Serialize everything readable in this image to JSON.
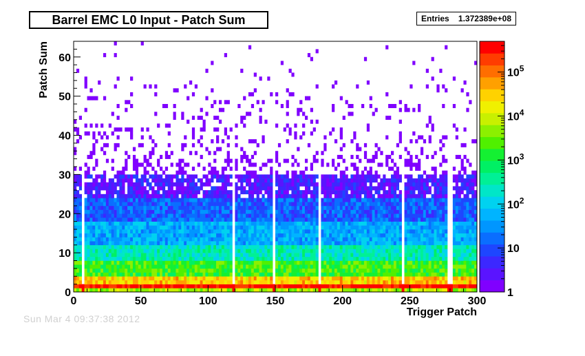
{
  "title": "Barrel EMC L0 Input - Patch Sum",
  "stats": {
    "label": "Entries",
    "value": "1.372389e+08"
  },
  "footer": "Sun Mar 4 09:37:38 2012",
  "chart_data": {
    "type": "heatmap",
    "title": "Barrel EMC L0 Input - Patch Sum",
    "xlabel": "Trigger Patch",
    "ylabel": "Patch Sum",
    "xlim": [
      0,
      300
    ],
    "ylim": [
      0,
      64
    ],
    "x_ticks": [
      0,
      50,
      100,
      150,
      200,
      250,
      300
    ],
    "y_ticks": [
      0,
      10,
      20,
      30,
      40,
      50,
      60
    ],
    "z_scale": "log",
    "z_range": [
      1,
      500000
    ],
    "z_ticks": [
      {
        "value": 1,
        "label": "1"
      },
      {
        "value": 10,
        "label": "10"
      },
      {
        "value": 100,
        "label": "10",
        "exp": "2"
      },
      {
        "value": 1000,
        "label": "10",
        "exp": "3"
      },
      {
        "value": 10000,
        "label": "10",
        "exp": "4"
      },
      {
        "value": 100000,
        "label": "10",
        "exp": "5"
      }
    ],
    "palette": [
      "#8000ff",
      "#5a14ff",
      "#3c28ff",
      "#1e46ff",
      "#0a6eff",
      "#0096ff",
      "#00b4ff",
      "#00d2f0",
      "#00e6c8",
      "#00f096",
      "#00f064",
      "#14f032",
      "#50f000",
      "#8cf000",
      "#c8f000",
      "#f0f000",
      "#ffd200",
      "#ffa000",
      "#ff6e00",
      "#ff3c00",
      "#ff0000"
    ],
    "bands": [
      {
        "y_from": 0,
        "y_to": 1,
        "log_count": 3.8
      },
      {
        "y_from": 1,
        "y_to": 2,
        "log_count": 5.6
      },
      {
        "y_from": 2,
        "y_to": 4,
        "log_count": 4.5
      },
      {
        "y_from": 4,
        "y_to": 8,
        "log_count": 3.3
      },
      {
        "y_from": 8,
        "y_to": 12,
        "log_count": 2.4
      },
      {
        "y_from": 12,
        "y_to": 18,
        "log_count": 1.7
      },
      {
        "y_from": 18,
        "y_to": 24,
        "log_count": 1.1
      },
      {
        "y_from": 24,
        "y_to": 30,
        "log_count": 0.5
      },
      {
        "y_from": 30,
        "y_to": 64,
        "log_count": 0.0
      }
    ],
    "dead_patches": [
      7,
      118,
      148,
      182,
      245,
      279,
      280
    ],
    "hot_patches": [
      182
    ]
  }
}
